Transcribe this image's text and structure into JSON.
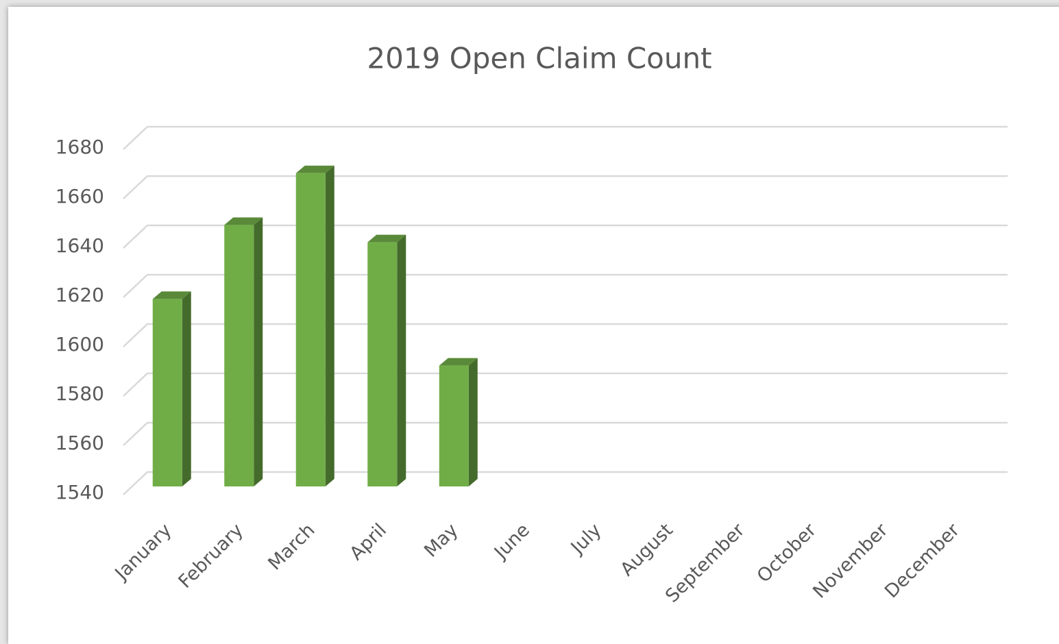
{
  "chart_data": {
    "type": "bar3d",
    "title": "2019 Open Claim Count",
    "categories": [
      "January",
      "February",
      "March",
      "April",
      "May",
      "June",
      "July",
      "August",
      "September",
      "October",
      "November",
      "December"
    ],
    "values": [
      1616,
      1646,
      1667,
      1639,
      1589,
      null,
      null,
      null,
      null,
      null,
      null,
      null
    ],
    "color": "#70ad47",
    "ylim": [
      1540,
      1680
    ],
    "yticks": [
      1540,
      1560,
      1580,
      1600,
      1620,
      1640,
      1660,
      1680
    ],
    "grid": true
  }
}
